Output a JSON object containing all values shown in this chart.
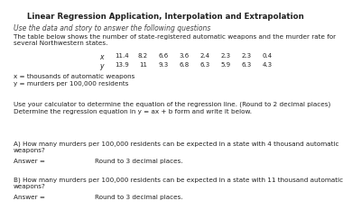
{
  "title": "Linear Regression Application, Interpolation and Extrapolation",
  "subtitle": "Use the data and story to answer the following questions",
  "para1": "The table below shows the number of state-registered automatic weapons and the murder rate for\nseveral Northwestern states.",
  "x_values": [
    "11.4",
    "8.2",
    "6.6",
    "3.6",
    "2.4",
    "2.3",
    "2.3",
    "0.4"
  ],
  "y_values": [
    "13.9",
    "11",
    "9.3",
    "6.8",
    "6.3",
    "5.9",
    "6.3",
    "4.3"
  ],
  "note1": "x = thousands of automatic weapons",
  "note2": "y = murders per 100,000 residents",
  "sec2_line1": "Use your calculator to determine the equation of the regression line. (Round to 2 decimal places)",
  "sec2_line2": "Determine the regression equation in y = ax + b form and write it below.",
  "secA_text1": "A) How many murders per 100,000 residents can be expected in a state with 4 thousand automatic",
  "secA_text2": "weapons?",
  "secA_label": "Answer =",
  "secA_round": "Round to 3 decimal places.",
  "secB_text1": "B) How many murders per 100,000 residents can be expected in a state with 11 thousand automatic",
  "secB_text2": "weapons?",
  "secB_label": "Answer =",
  "secB_round": "Round to 3 decimal places.",
  "edge_color": "#aaaaaa",
  "header_bg": "#e8e8e8",
  "white": "#ffffff",
  "cell_header_bg": "#d0d0d0",
  "text_dark": "#222222",
  "text_mid": "#444444"
}
